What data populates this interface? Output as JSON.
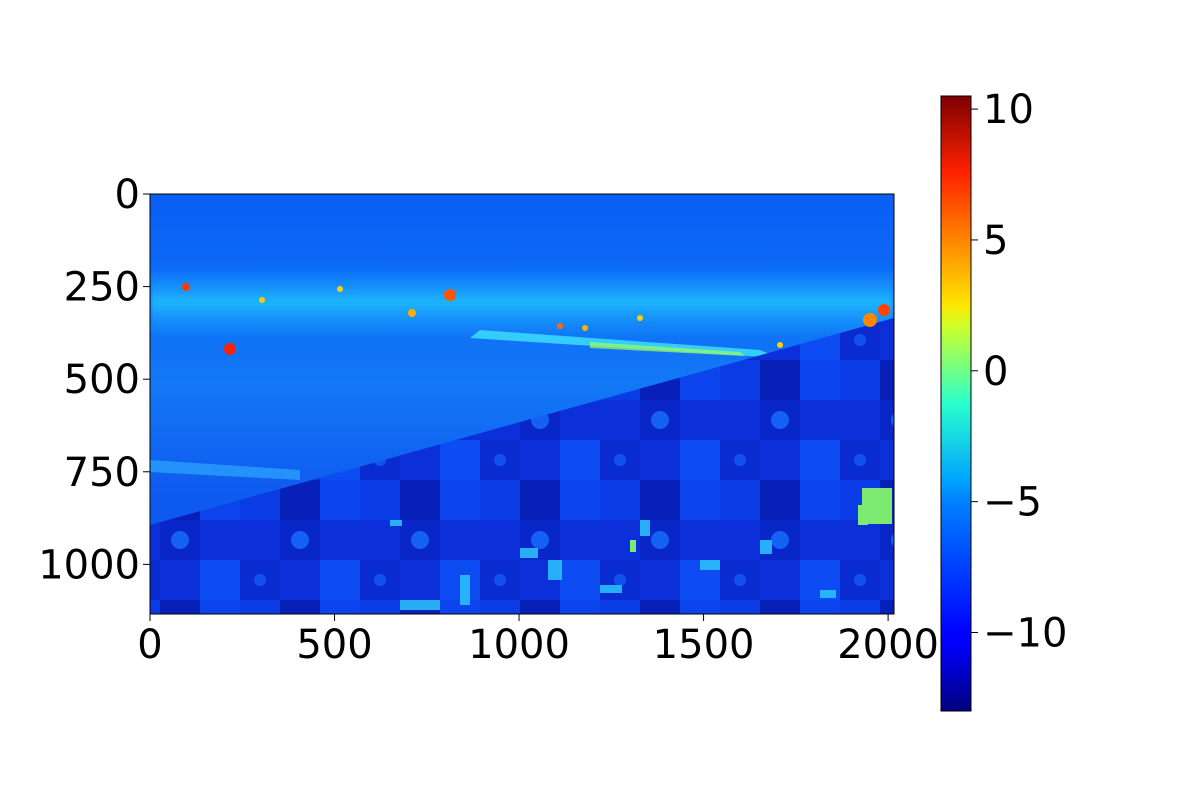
{
  "chart_data": {
    "type": "heatmap",
    "title": "",
    "xlabel": "",
    "ylabel": "",
    "colormap": "jet",
    "xlim": [
      0,
      2016
    ],
    "ylim": [
      1134,
      0
    ],
    "x_ticks": [
      0,
      500,
      1000,
      1500,
      2000
    ],
    "x_tick_labels": [
      "0",
      "500",
      "1000",
      "1500",
      "2000"
    ],
    "y_ticks": [
      0,
      250,
      500,
      750,
      1000
    ],
    "y_tick_labels": [
      "0",
      "250",
      "500",
      "750",
      "1000"
    ],
    "colorbar": {
      "range": [
        -13,
        10.5
      ],
      "ticks": [
        10,
        5,
        0,
        -5,
        -10
      ],
      "tick_labels": [
        "10",
        "5",
        "0",
        "−5",
        "−10"
      ]
    },
    "regions": [
      {
        "label": "upper-left area above diagonal",
        "approx_value": -9
      },
      {
        "label": "lower-right area below diagonal",
        "approx_value": -10.5
      },
      {
        "label": "horizon band of bright lights",
        "approx_value": -5
      },
      {
        "label": "light hotspots",
        "approx_value": 8
      }
    ]
  }
}
